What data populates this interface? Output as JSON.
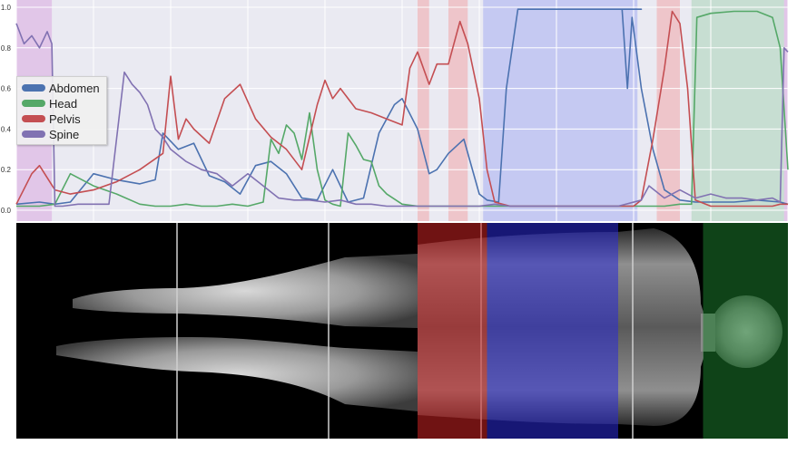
{
  "chart_data": {
    "type": "line",
    "title": "",
    "xlabel": "",
    "ylabel": "",
    "ylim": [
      0,
      1
    ],
    "yticks": [
      "0.0",
      "0.2",
      "0.4",
      "0.6",
      "0.8",
      "1.0"
    ],
    "grid": true,
    "legend_placement": "left",
    "xlim": [
      0,
      100
    ],
    "series": [
      {
        "name": "Abdomen",
        "color": "#4c72b0",
        "x": [
          0,
          3,
          5,
          7,
          10,
          13,
          16,
          18,
          19,
          21,
          23,
          25,
          27,
          29,
          31,
          33,
          35,
          37,
          39,
          41,
          43,
          45,
          47,
          49,
          50,
          52,
          53.5,
          54.5,
          56,
          58,
          60,
          61,
          62.5,
          63.5,
          65,
          66.5,
          68,
          70,
          72,
          75,
          78,
          81,
          78.5,
          79.2,
          79.8,
          81,
          82.5,
          84,
          86,
          88,
          90,
          93,
          96,
          99,
          100
        ],
        "y": [
          0.03,
          0.04,
          0.03,
          0.04,
          0.18,
          0.15,
          0.13,
          0.15,
          0.38,
          0.3,
          0.33,
          0.17,
          0.14,
          0.08,
          0.22,
          0.24,
          0.18,
          0.06,
          0.05,
          0.2,
          0.04,
          0.06,
          0.38,
          0.52,
          0.55,
          0.4,
          0.18,
          0.2,
          0.28,
          0.35,
          0.08,
          0.05,
          0.04,
          0.6,
          0.99,
          0.99,
          0.99,
          0.99,
          0.99,
          0.99,
          0.99,
          0.99,
          0.99,
          0.6,
          0.95,
          0.6,
          0.3,
          0.1,
          0.05,
          0.04,
          0.04,
          0.04,
          0.05,
          0.04,
          0.03
        ]
      },
      {
        "name": "Head",
        "color": "#55a868",
        "x": [
          0,
          3,
          5,
          7,
          10,
          13,
          16,
          18,
          20,
          22,
          24,
          26,
          28,
          30,
          32,
          33,
          34,
          35,
          36,
          37,
          38,
          39,
          40,
          41,
          42,
          43,
          44,
          45,
          46,
          47,
          48,
          50,
          52,
          54,
          56,
          58,
          60,
          62,
          64,
          66,
          68,
          70,
          72,
          74,
          76,
          78,
          80,
          82,
          84,
          86,
          87.5,
          88.2,
          90,
          93,
          96,
          98,
          99,
          100
        ],
        "y": [
          0.02,
          0.02,
          0.03,
          0.18,
          0.12,
          0.08,
          0.03,
          0.02,
          0.02,
          0.03,
          0.02,
          0.02,
          0.03,
          0.02,
          0.04,
          0.35,
          0.28,
          0.42,
          0.38,
          0.25,
          0.48,
          0.2,
          0.05,
          0.03,
          0.02,
          0.38,
          0.32,
          0.25,
          0.24,
          0.12,
          0.08,
          0.03,
          0.02,
          0.02,
          0.02,
          0.02,
          0.02,
          0.02,
          0.02,
          0.02,
          0.02,
          0.02,
          0.02,
          0.02,
          0.02,
          0.02,
          0.02,
          0.02,
          0.02,
          0.03,
          0.03,
          0.95,
          0.97,
          0.98,
          0.98,
          0.95,
          0.8,
          0.2
        ]
      },
      {
        "name": "Pelvis",
        "color": "#c44e52",
        "x": [
          0,
          2,
          3,
          5,
          7,
          10,
          13,
          16,
          19,
          20,
          21,
          22,
          23,
          25,
          27,
          29,
          31,
          33,
          35,
          37,
          39,
          40,
          41,
          42,
          44,
          46,
          48,
          50,
          51,
          52,
          53.5,
          54.5,
          56,
          57.5,
          58.5,
          60,
          61,
          62,
          64,
          66,
          68,
          70,
          72,
          75,
          78,
          80,
          81,
          82.5,
          84,
          85,
          86,
          87,
          88,
          90,
          93,
          96,
          98,
          99,
          100
        ],
        "y": [
          0.03,
          0.18,
          0.22,
          0.1,
          0.08,
          0.1,
          0.14,
          0.2,
          0.28,
          0.66,
          0.35,
          0.45,
          0.4,
          0.33,
          0.55,
          0.62,
          0.45,
          0.36,
          0.3,
          0.2,
          0.52,
          0.64,
          0.55,
          0.6,
          0.5,
          0.48,
          0.45,
          0.42,
          0.7,
          0.78,
          0.62,
          0.72,
          0.72,
          0.93,
          0.82,
          0.55,
          0.2,
          0.04,
          0.02,
          0.02,
          0.02,
          0.02,
          0.02,
          0.02,
          0.02,
          0.02,
          0.05,
          0.35,
          0.7,
          0.98,
          0.92,
          0.6,
          0.05,
          0.02,
          0.02,
          0.02,
          0.02,
          0.03,
          0.03
        ]
      },
      {
        "name": "Spine",
        "color": "#8172b2",
        "x": [
          0,
          1,
          2,
          3,
          4,
          4.6,
          5,
          6,
          8,
          10,
          12,
          14,
          15,
          16,
          17,
          18,
          19,
          20,
          22,
          24,
          26,
          28,
          30,
          32,
          34,
          36,
          38,
          40,
          42,
          44,
          46,
          48,
          50,
          52,
          54,
          56,
          58,
          60,
          62,
          64,
          66,
          68,
          70,
          72,
          75,
          78,
          81,
          82,
          84,
          86,
          87,
          88,
          90,
          92,
          94,
          96,
          98,
          99,
          99.5,
          100
        ],
        "y": [
          0.92,
          0.82,
          0.86,
          0.8,
          0.88,
          0.82,
          0.02,
          0.02,
          0.03,
          0.03,
          0.03,
          0.68,
          0.62,
          0.58,
          0.52,
          0.4,
          0.36,
          0.3,
          0.24,
          0.2,
          0.18,
          0.12,
          0.18,
          0.12,
          0.06,
          0.05,
          0.05,
          0.04,
          0.05,
          0.03,
          0.03,
          0.02,
          0.02,
          0.02,
          0.02,
          0.02,
          0.02,
          0.02,
          0.03,
          0.02,
          0.02,
          0.02,
          0.02,
          0.02,
          0.02,
          0.02,
          0.05,
          0.12,
          0.06,
          0.1,
          0.08,
          0.06,
          0.08,
          0.06,
          0.06,
          0.05,
          0.06,
          0.04,
          0.8,
          0.78
        ]
      }
    ],
    "highlight_bands": [
      {
        "label": "Spine",
        "color": "#d8a8e0",
        "x": [
          0,
          4.6
        ]
      },
      {
        "label": "Pelvis",
        "color": "#f1a5a9",
        "x": [
          52,
          53.5
        ]
      },
      {
        "label": "Pelvis",
        "color": "#f1a5a9",
        "x": [
          56,
          58.5
        ]
      },
      {
        "label": "Abdomen",
        "color": "#a6adf2",
        "x": [
          60.5,
          80.5
        ]
      },
      {
        "label": "Pelvis",
        "color": "#f1a5a9",
        "x": [
          83,
          86
        ]
      },
      {
        "label": "Head",
        "color": "#a9d3b8",
        "x": [
          87.5,
          99.5
        ]
      },
      {
        "label": "Spine",
        "color": "#d8a8e0",
        "x": [
          99.5,
          100
        ]
      }
    ]
  },
  "scan_image": {
    "description_regions": [
      {
        "label": "Pelvis",
        "color": "#cc2222",
        "x": [
          52,
          61
        ]
      },
      {
        "label": "Abdomen",
        "color": "#2a2ad6",
        "x": [
          61,
          78
        ]
      },
      {
        "label": "Head",
        "color": "#1b7a2b",
        "x": [
          89,
          100
        ]
      }
    ]
  }
}
